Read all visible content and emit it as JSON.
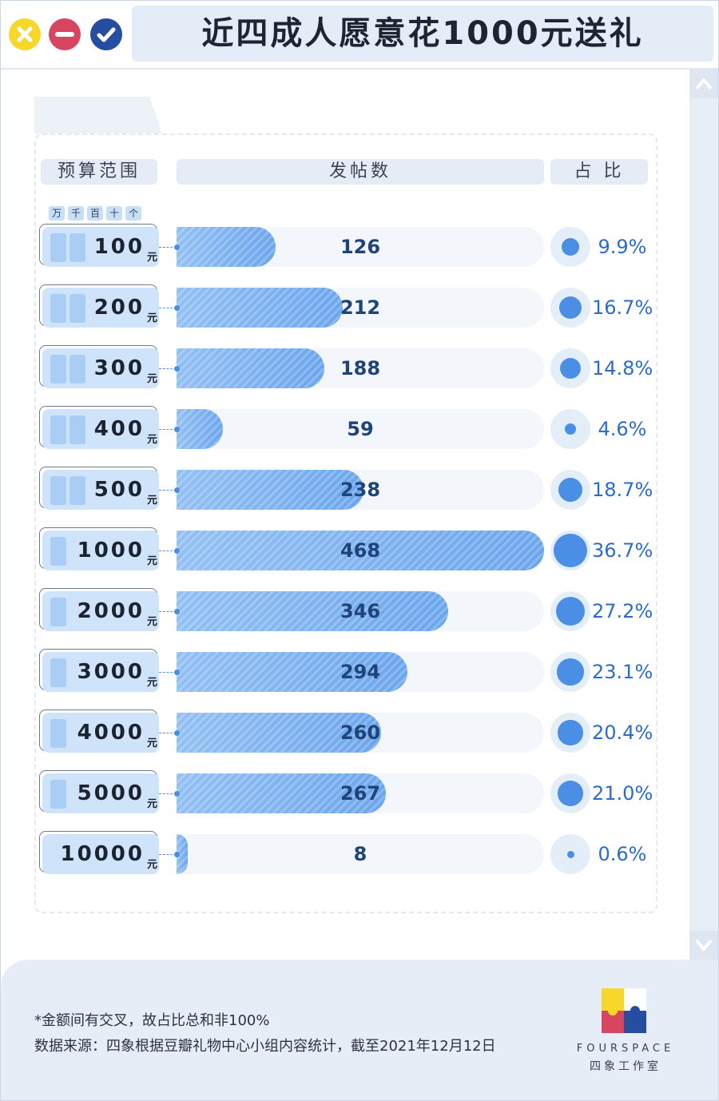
{
  "window": {
    "title": "近四成人愿意花1000元送礼",
    "buttons": [
      "close-icon",
      "minus-icon",
      "check-icon"
    ],
    "button_colors": {
      "close": "#f7d82a",
      "minus": "#d84560",
      "check": "#264ea0"
    }
  },
  "table": {
    "headers": {
      "range": "预算范围",
      "posts": "发帖数",
      "share": "占 比"
    },
    "units": [
      "万",
      "千",
      "百",
      "十",
      "个"
    ],
    "currency": "元"
  },
  "chart_data": {
    "type": "bar",
    "orientation": "horizontal",
    "categories": [
      "100",
      "200",
      "300",
      "400",
      "500",
      "1000",
      "2000",
      "3000",
      "4000",
      "5000",
      "10000"
    ],
    "values": [
      126,
      212,
      188,
      59,
      238,
      468,
      346,
      294,
      260,
      267,
      8
    ],
    "shares": [
      9.9,
      16.7,
      14.8,
      4.6,
      18.7,
      36.7,
      27.2,
      23.1,
      20.4,
      21.0,
      0.6
    ],
    "share_labels": [
      "9.9%",
      "16.7%",
      "14.8%",
      "4.6%",
      "18.7%",
      "36.7%",
      "27.2%",
      "23.1%",
      "20.4%",
      "21.0%",
      "0.6%"
    ],
    "xlim": [
      0,
      468
    ],
    "colors": {
      "bar": "#7ab1ee",
      "dot": "#4b8ee6",
      "track": "#f3f6fb"
    }
  },
  "footer": {
    "note": "*金额间有交叉，故占比总和非100%",
    "source": "数据来源：四象根据豆瓣礼物中心小组内容统计，截至2021年12月12日",
    "brand_en": "FOURSPACE",
    "brand_cn": "四象工作室"
  },
  "scrollbar": {
    "up_icon": "chevron-up-icon",
    "down_icon": "chevron-down-icon"
  }
}
